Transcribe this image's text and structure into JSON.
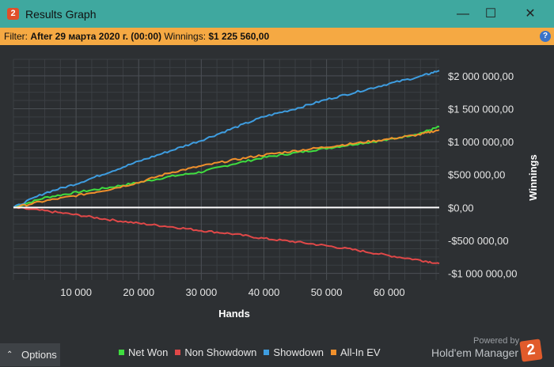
{
  "window": {
    "title": "Results Graph",
    "app_logo_text": "2",
    "minimize_glyph": "—",
    "maximize_glyph": "☐",
    "close_glyph": "✕"
  },
  "filter": {
    "filter_label": "Filter:",
    "filter_value": "After 29 марта 2020 г. (00:00)",
    "winnings_label": "Winnings:",
    "winnings_value": "$1 225 560,00",
    "help_icon": "?"
  },
  "options": {
    "label": "Options",
    "caret": "⌃"
  },
  "branding": {
    "powered_by": "Powered by",
    "product": "Hold'em Manager",
    "logo_text": "2"
  },
  "colors": {
    "net_won": "#3fdd3f",
    "non_showdown": "#e04848",
    "showdown": "#3e9de0",
    "all_in_ev": "#f0902c",
    "zero_line": "#ffffff",
    "plot_bg": "#2b2e31",
    "grid": "#3b3f43"
  },
  "chart_data": {
    "type": "line",
    "xlabel": "Hands",
    "ylabel": "Winnings",
    "xlim": [
      0,
      68000
    ],
    "ylim": [
      -1100000,
      2250000
    ],
    "x_ticks": [
      10000,
      20000,
      30000,
      40000,
      50000,
      60000
    ],
    "x_tick_labels": [
      "10 000",
      "20 000",
      "30 000",
      "40 000",
      "50 000",
      "60 000"
    ],
    "y_ticks": [
      2000000,
      1500000,
      1000000,
      500000,
      0,
      -500000,
      -1000000
    ],
    "y_tick_labels": [
      "$2 000 000,00",
      "$1 500 000,00",
      "$1 000 000,00",
      "$500 000,00",
      "$0,00",
      "-$500 000,00",
      "-$1 000 000,00"
    ],
    "grid": true,
    "legend_position": "bottom",
    "series": [
      {
        "name": "Net Won",
        "color_key": "net_won",
        "x": [
          0,
          5000,
          10000,
          15000,
          20000,
          25000,
          30000,
          35000,
          40000,
          45000,
          50000,
          55000,
          60000,
          65000,
          68000
        ],
        "values": [
          0,
          150000,
          230000,
          300000,
          380000,
          470000,
          540000,
          660000,
          760000,
          830000,
          900000,
          970000,
          1030000,
          1130000,
          1225560
        ]
      },
      {
        "name": "Non Showdown",
        "color_key": "non_showdown",
        "x": [
          0,
          5000,
          10000,
          15000,
          20000,
          25000,
          30000,
          35000,
          40000,
          45000,
          50000,
          55000,
          60000,
          65000,
          68000
        ],
        "values": [
          0,
          -50000,
          -110000,
          -180000,
          -240000,
          -290000,
          -350000,
          -400000,
          -470000,
          -520000,
          -580000,
          -650000,
          -730000,
          -800000,
          -850000
        ]
      },
      {
        "name": "Showdown",
        "color_key": "showdown",
        "x": [
          0,
          5000,
          10000,
          15000,
          20000,
          25000,
          30000,
          35000,
          40000,
          45000,
          50000,
          55000,
          60000,
          65000,
          68000
        ],
        "values": [
          0,
          220000,
          360000,
          530000,
          700000,
          860000,
          1020000,
          1200000,
          1380000,
          1500000,
          1640000,
          1760000,
          1880000,
          1990000,
          2080000
        ]
      },
      {
        "name": "All-In EV",
        "color_key": "all_in_ev",
        "x": [
          0,
          5000,
          10000,
          15000,
          20000,
          25000,
          30000,
          35000,
          40000,
          45000,
          50000,
          55000,
          60000,
          65000,
          68000
        ],
        "values": [
          0,
          100000,
          180000,
          270000,
          380000,
          530000,
          630000,
          720000,
          800000,
          860000,
          920000,
          980000,
          1040000,
          1110000,
          1180000
        ]
      }
    ]
  }
}
